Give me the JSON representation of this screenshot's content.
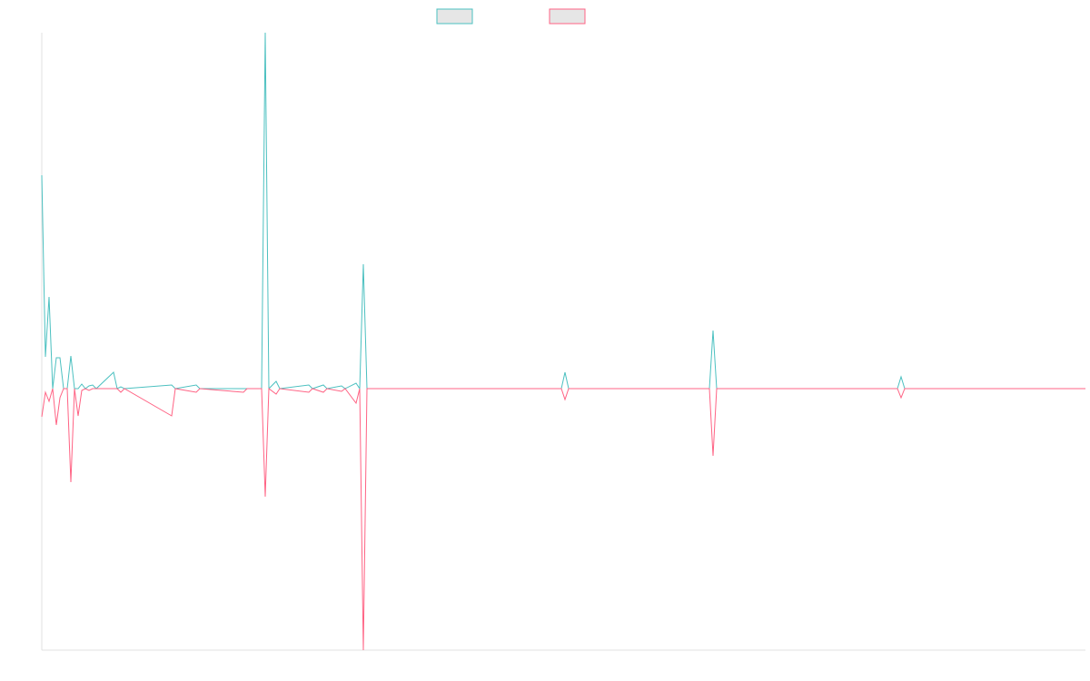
{
  "chart_data": {
    "type": "line",
    "x": [
      0,
      4,
      8,
      12,
      16,
      20,
      24,
      28,
      32,
      36,
      40,
      44,
      48,
      52,
      56,
      60,
      79,
      83,
      87,
      91,
      143,
      147,
      170,
      174,
      222,
      226,
      242,
      246,
      250,
      258,
      262,
      294,
      298,
      310,
      314,
      330,
      334,
      346,
      350,
      354,
      358,
      572,
      576,
      580,
      735,
      739,
      743,
      942,
      946,
      950,
      1149
    ],
    "series": [
      {
        "color": "#4bc0c0",
        "values": [
          235,
          35,
          101,
          0,
          34,
          34,
          0,
          0,
          36,
          0,
          0,
          5,
          0,
          3,
          4,
          0,
          18,
          0,
          2,
          0,
          4,
          0,
          4,
          0,
          0,
          0,
          0,
          392,
          0,
          8,
          0,
          4,
          0,
          4,
          0,
          3,
          0,
          6,
          0,
          137,
          0,
          0,
          18,
          0,
          0,
          64,
          0,
          0,
          13,
          0,
          0
        ]
      },
      {
        "color": "#ff6384",
        "values": [
          -31,
          -4,
          -14,
          0,
          -40,
          -10,
          0,
          0,
          -103,
          0,
          -30,
          -2,
          0,
          -2,
          0,
          0,
          0,
          0,
          -4,
          0,
          -30,
          0,
          -4,
          0,
          -4,
          0,
          0,
          -119,
          0,
          -6,
          0,
          -4,
          0,
          -4,
          0,
          -3,
          0,
          -16,
          0,
          -288,
          0,
          0,
          -12,
          0,
          0,
          -74,
          0,
          0,
          -10,
          0,
          0
        ]
      }
    ],
    "xlim": [
      0,
      1149
    ],
    "ylim": [
      -288,
      392
    ],
    "legend": "top"
  }
}
